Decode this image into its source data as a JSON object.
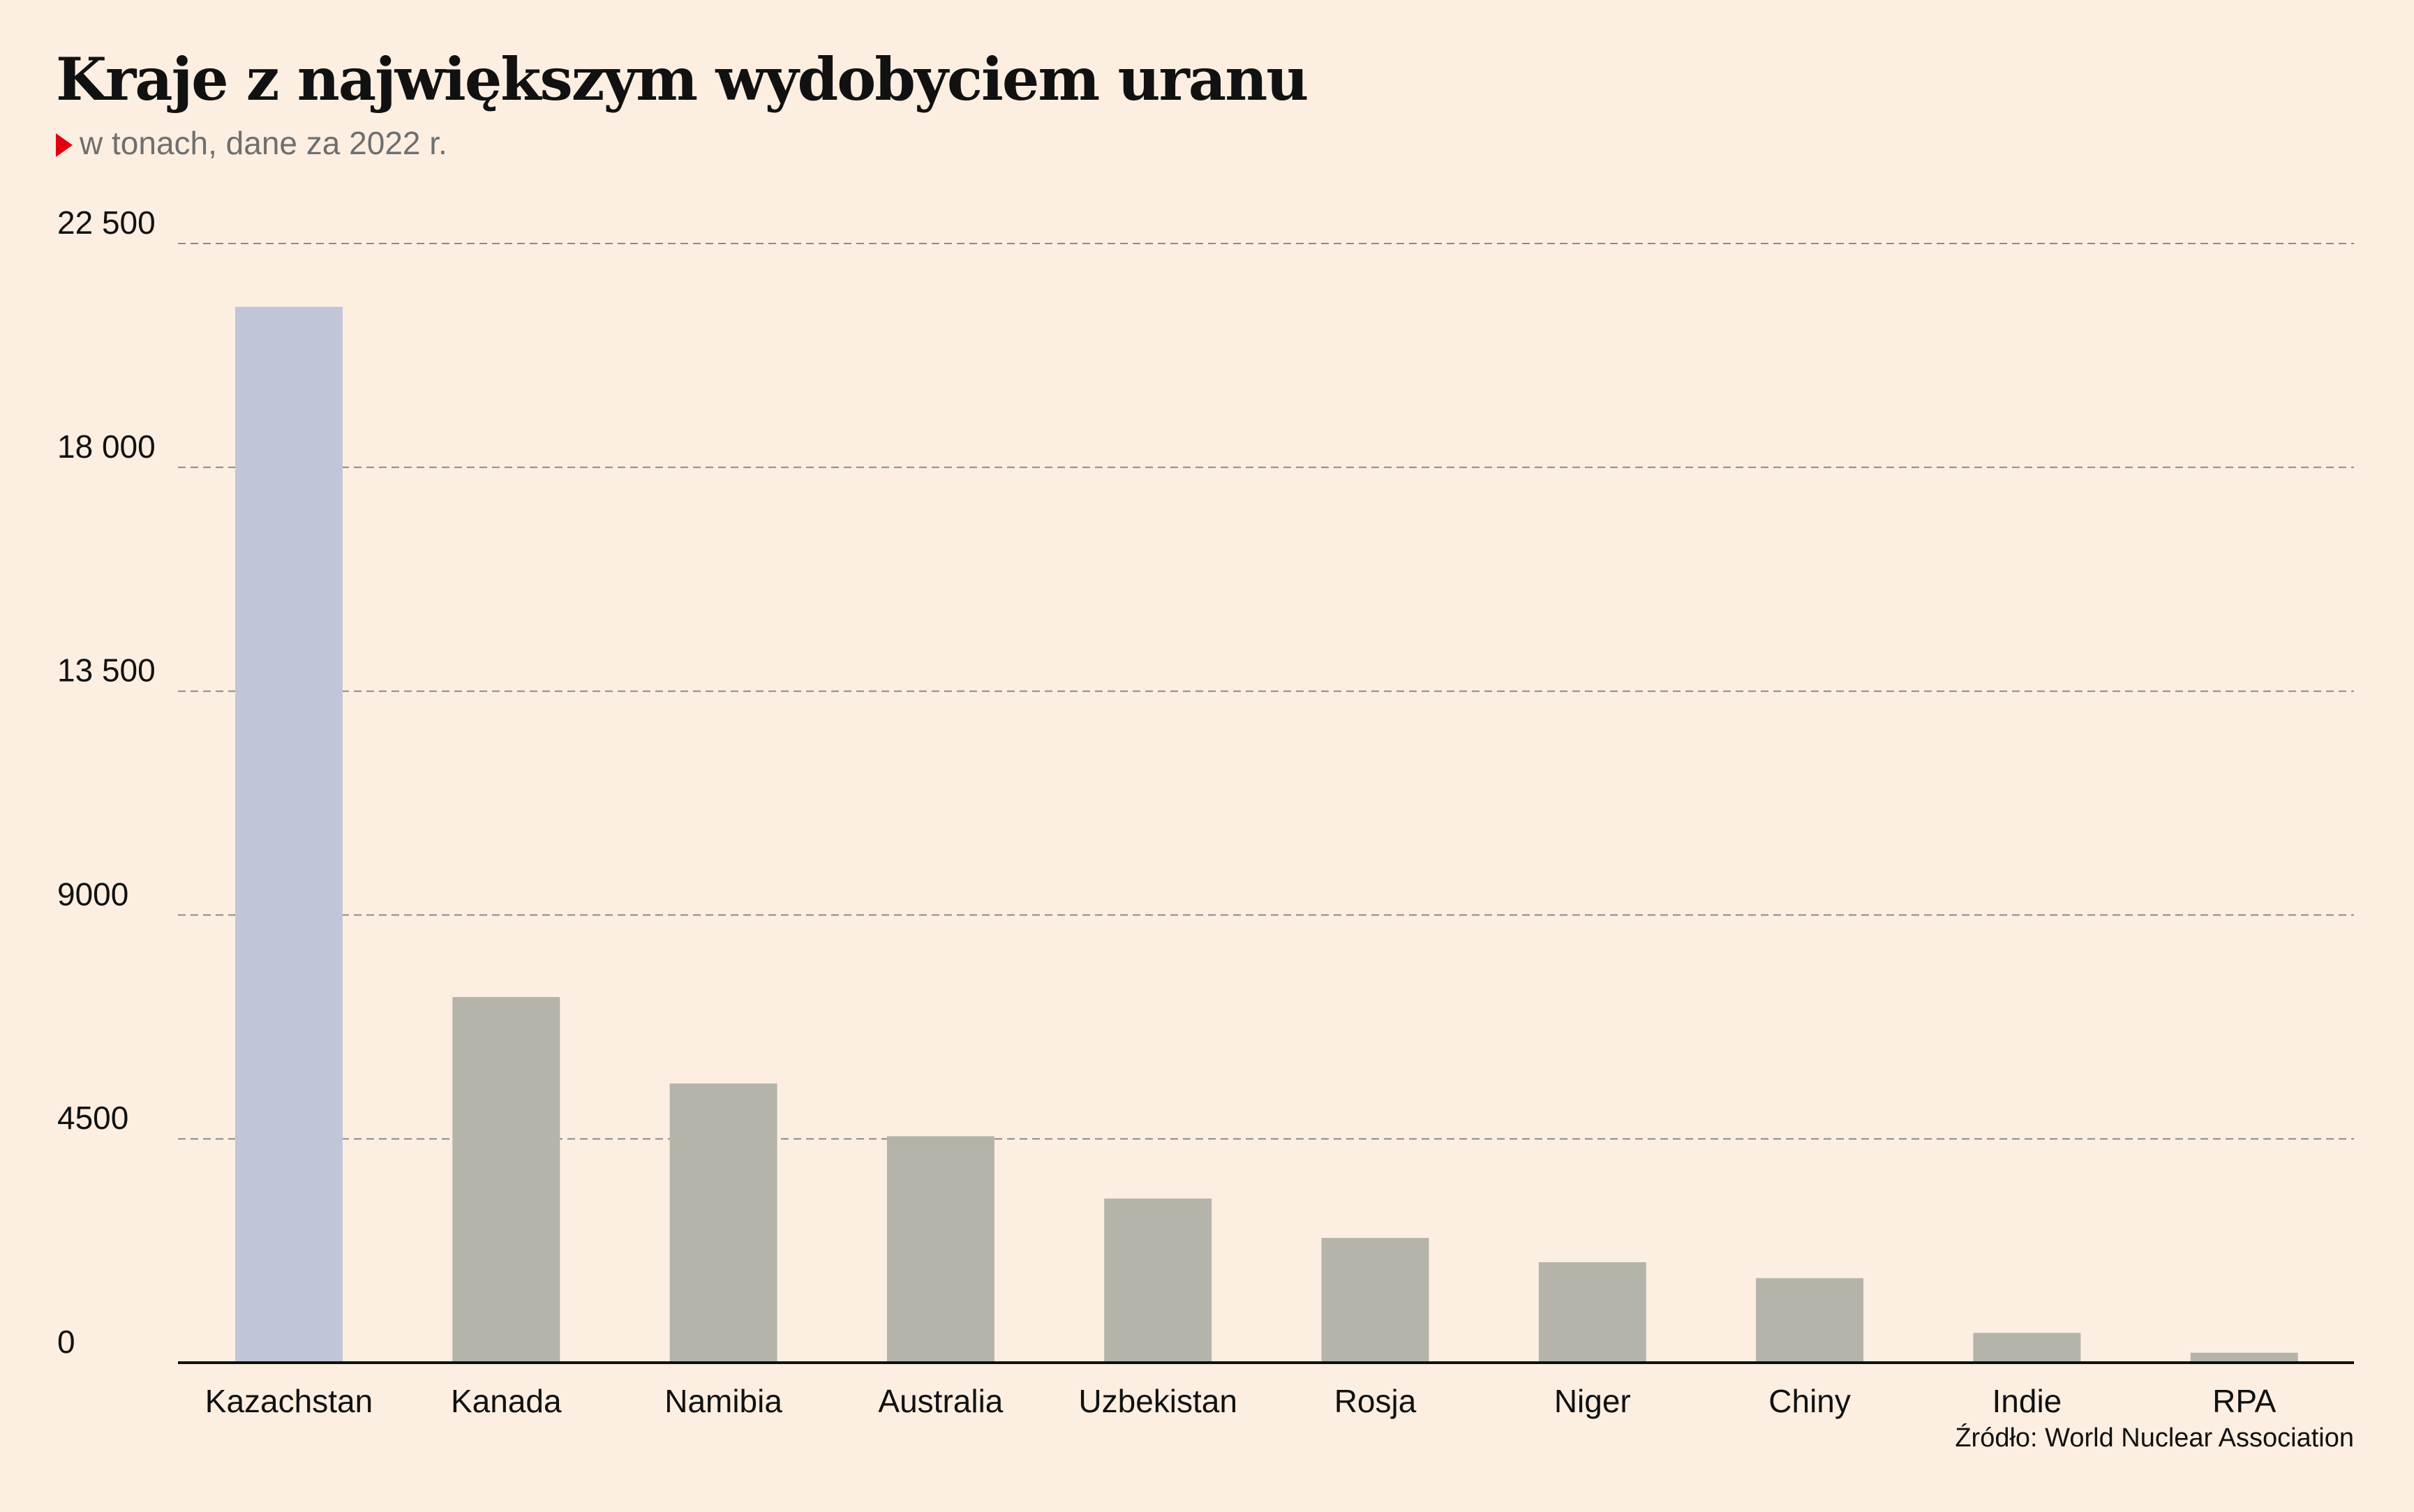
{
  "title": "Kraje z największym wydobyciem uranu",
  "subtitle": "w tonach, dane za 2022 r.",
  "source": "Źródło: World Nuclear Association",
  "colors": {
    "background": "#fcefe2",
    "highlight_bar": "#c0c6d8",
    "bar": "#b5b4ab",
    "accent_marker": "#e3000f",
    "grid": "#8a8a8a",
    "axis": "#111111"
  },
  "chart_data": {
    "type": "bar",
    "categories": [
      "Kazachstan",
      "Kanada",
      "Namibia",
      "Australia",
      "Uzbekistan",
      "Rosja",
      "Niger",
      "Chiny",
      "Indie",
      "RPA"
    ],
    "values": [
      21227,
      7351,
      5613,
      4553,
      3300,
      2508,
      2020,
      1700,
      600,
      200
    ],
    "highlight_index": 0,
    "ylim": [
      0,
      22500
    ],
    "yticks": [
      0,
      4500,
      9000,
      13500,
      18000,
      22500
    ],
    "ytick_labels": [
      "0",
      "4500",
      "9000",
      "13 500",
      "18 000",
      "22 500"
    ],
    "grid": "dashed horizontal",
    "legend": "none"
  }
}
